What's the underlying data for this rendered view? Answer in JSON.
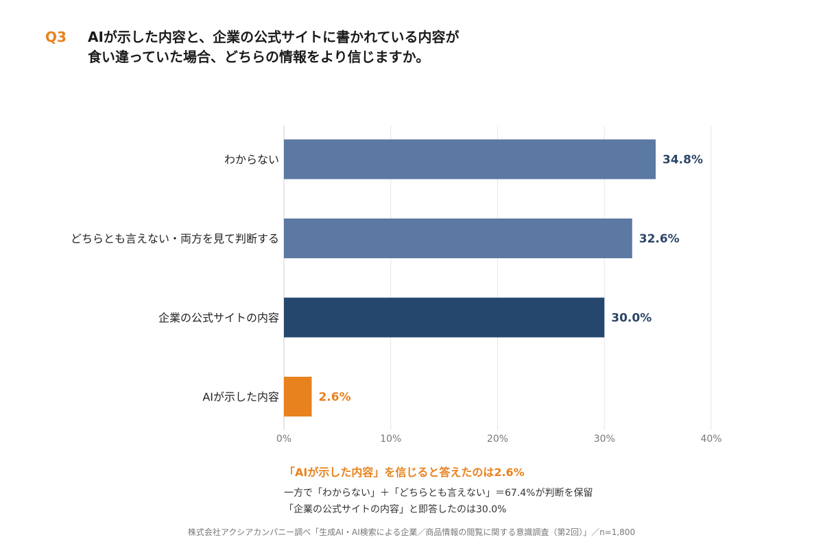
{
  "header": {
    "q_label": "Q3",
    "title_line1": "AIが示した内容と、企業の公式サイトに書かれている内容が",
    "title_line2": "食い違っていた場合、どちらの情報をより信じますか。"
  },
  "colors": {
    "bar_neutral": "#5b79a3",
    "bar_dark": "#26476d",
    "bar_accent": "#e8821e",
    "label_dark": "#2c4566",
    "axis_tick": "#777777",
    "grid": "#e6e6e6"
  },
  "chart_data": {
    "type": "bar",
    "orientation": "horizontal",
    "categories": [
      "わからない",
      "どちらとも言えない・両方を見て判断する",
      "企業の公式サイトの内容",
      "AIが示した内容"
    ],
    "values": [
      34.8,
      32.6,
      30.0,
      2.6
    ],
    "value_labels": [
      "34.8%",
      "32.6%",
      "30.0%",
      "2.6%"
    ],
    "bar_color_keys": [
      "bar_neutral",
      "bar_neutral",
      "bar_dark",
      "bar_accent"
    ],
    "xlim": [
      0,
      40
    ],
    "xticks": [
      0,
      10,
      20,
      30,
      40
    ],
    "xtick_labels": [
      "0%",
      "10%",
      "20%",
      "30%",
      "40%"
    ],
    "grid": true,
    "legend": "none"
  },
  "summary": {
    "headline": "「AIが示した内容」を信じると答えたのは2.6%",
    "line1": "一方で「わからない」＋「どちらとも言えない」＝67.4%が判断を保留",
    "line2": "「企業の公式サイトの内容」と即答したのは30.0%"
  },
  "source": "株式会社アクシアカンパニー調べ「生成AI・AI検索による企業／商品情報の閲覧に関する意識調査（第2回）」／n=1,800"
}
